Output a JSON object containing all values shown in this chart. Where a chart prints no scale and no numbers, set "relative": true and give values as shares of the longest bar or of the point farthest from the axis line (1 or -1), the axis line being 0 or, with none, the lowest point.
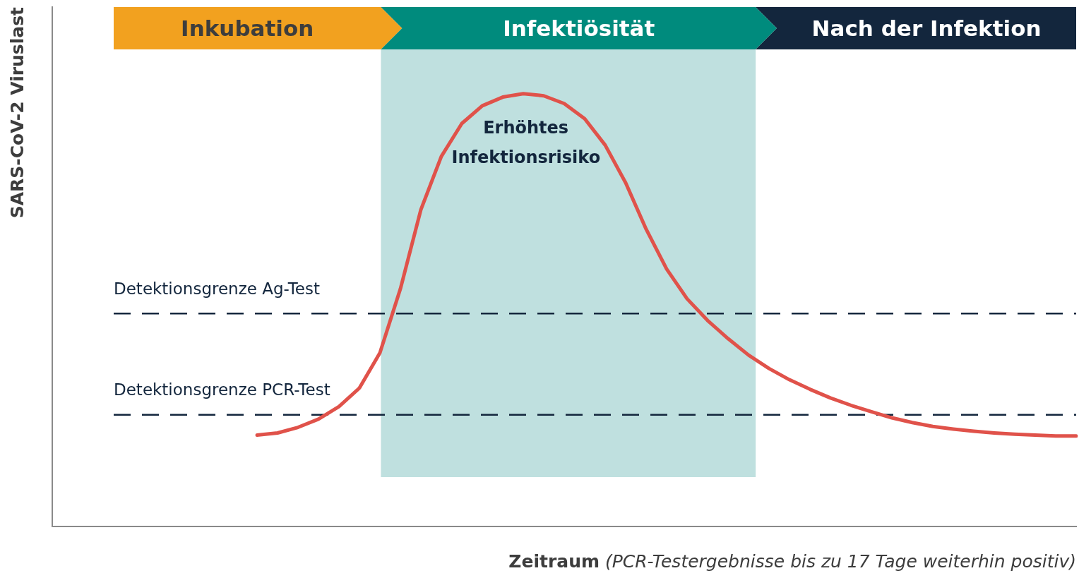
{
  "chart_data": {
    "type": "line",
    "relative": true,
    "xlabel": "Zeitraum (PCR-Testergebnisse bis zu 17 Tage weiterhin positiv)",
    "ylabel": "SARS-CoV-2 Viruslast",
    "tick_labels": false,
    "grid": false,
    "legend": false,
    "marker": "none",
    "line_style": "solid",
    "categories": [
      null,
      null,
      null,
      null,
      null,
      null,
      null,
      null,
      null,
      null,
      null,
      null,
      null,
      null,
      null,
      null,
      null,
      null,
      null,
      null,
      null,
      null,
      null,
      null,
      null,
      null,
      null,
      null,
      null,
      null,
      null,
      null,
      null,
      null,
      null,
      null,
      null,
      null,
      null,
      null,
      null,
      null,
      null,
      null,
      null,
      null,
      null,
      null,
      null,
      null,
      null
    ],
    "series": [
      {
        "color": "#e0524a",
        "values": [
          null,
          null,
          null,
          null,
          null,
          null,
          null,
          null,
          null,
          null,
          0.211,
          0.216,
          0.229,
          0.248,
          0.277,
          0.32,
          0.401,
          0.549,
          0.732,
          0.855,
          0.931,
          0.972,
          0.992,
          1.0,
          0.995,
          0.977,
          0.942,
          0.881,
          0.794,
          0.687,
          0.595,
          0.526,
          0.476,
          0.434,
          0.396,
          0.365,
          0.339,
          0.317,
          0.297,
          0.28,
          0.265,
          0.251,
          0.24,
          0.231,
          0.225,
          0.22,
          0.216,
          0.213,
          0.211,
          0.209,
          0.209
        ]
      }
    ],
    "ref_lines": [
      {
        "axis": "y",
        "value": 0.492,
        "label": "Detektionsgrenze Ag-Test",
        "color": "#13263d",
        "line_style": "dashed"
      },
      {
        "axis": "y",
        "value": 0.258,
        "label": "Detektionsgrenze PCR-Test",
        "color": "#13263d",
        "line_style": "dashed"
      }
    ],
    "annotations": [
      "Inkubation",
      "Infektiösität",
      "Nach der Infektion",
      "Erhöhtes Infektionsrisiko"
    ]
  }
}
